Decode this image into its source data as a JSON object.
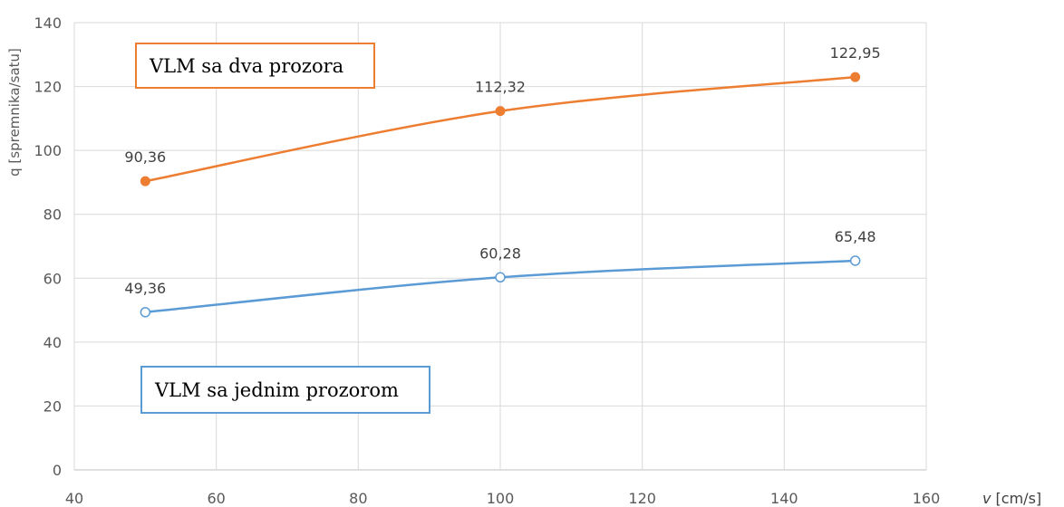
{
  "chart_data": {
    "type": "line",
    "x": [
      50,
      100,
      150
    ],
    "series": [
      {
        "name": "VLM sa dva prozora",
        "values": [
          90.36,
          112.32,
          122.95
        ],
        "labels": [
          "90,36",
          "112,32",
          "122,95"
        ],
        "color": "#ED7D31",
        "marker": "filled-circle"
      },
      {
        "name": "VLM sa jednim prozorom",
        "values": [
          49.36,
          60.28,
          65.48
        ],
        "labels": [
          "49,36",
          "60,28",
          "65,48"
        ],
        "color": "#5B9BD5",
        "marker": "hollow-circle"
      }
    ],
    "xlim": [
      40,
      160
    ],
    "ylim": [
      0,
      140
    ],
    "xticks": [
      40,
      60,
      80,
      100,
      120,
      140,
      160
    ],
    "yticks": [
      0,
      20,
      40,
      60,
      80,
      100,
      120,
      140
    ],
    "xlabel_symbol": "v",
    "xlabel_unit": " [cm/s]",
    "ylabel": "q [spremnika/satu]",
    "grid": true,
    "smooth": true
  }
}
